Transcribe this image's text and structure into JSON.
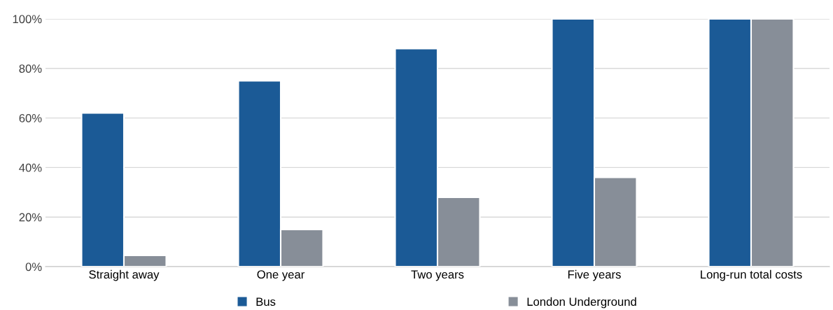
{
  "chart_data": {
    "type": "bar",
    "categories": [
      "Straight away",
      "One year",
      "Two years",
      "Five years",
      "Long-run total costs"
    ],
    "series": [
      {
        "name": "Bus",
        "color": "#1b5a96",
        "values": [
          62,
          75,
          88,
          100,
          100
        ]
      },
      {
        "name": "London Underground",
        "color": "#878e98",
        "values": [
          4.5,
          15,
          28,
          36,
          100
        ]
      }
    ],
    "ylim": [
      0,
      100
    ],
    "yticks": [
      {
        "value": 0,
        "label": "0%"
      },
      {
        "value": 20,
        "label": "20%"
      },
      {
        "value": 40,
        "label": "40%"
      },
      {
        "value": 60,
        "label": "60%"
      },
      {
        "value": 80,
        "label": "80%"
      },
      {
        "value": 100,
        "label": "100%"
      }
    ],
    "grid": "y",
    "legend": "bottom"
  }
}
